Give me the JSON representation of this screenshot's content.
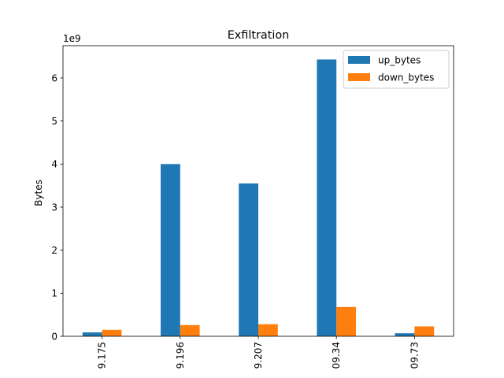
{
  "chart_data": {
    "type": "bar",
    "title": "Exfiltration",
    "xlabel": "",
    "ylabel": "Bytes",
    "offset_label": "1e9",
    "categories": [
      "9.175",
      "9.196",
      "9.207",
      "09.34",
      "09.73"
    ],
    "series": [
      {
        "name": "up_bytes",
        "color": "#1f77b4",
        "values": [
          0.09,
          4.0,
          3.55,
          6.43,
          0.07
        ]
      },
      {
        "name": "down_bytes",
        "color": "#ff7f0e",
        "values": [
          0.15,
          0.26,
          0.28,
          0.68,
          0.23
        ]
      }
    ],
    "yticks": [
      0,
      1,
      2,
      3,
      4,
      5,
      6
    ],
    "ylim": [
      0,
      6.75
    ],
    "grid": false,
    "legend_position": "top-right"
  }
}
